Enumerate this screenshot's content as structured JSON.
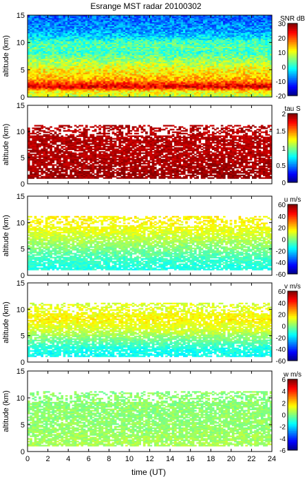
{
  "figure": {
    "title": "Esrange MST radar 20100302",
    "xlabel": "time (UT)"
  },
  "chart_data": [
    {
      "type": "heatmap",
      "ylabel": "altitude (km)",
      "quantity": "SNR",
      "unit_label": "SNR dB",
      "xlim": [
        0,
        24
      ],
      "ylim": [
        0,
        15
      ],
      "xticks": [
        0,
        2,
        4,
        6,
        8,
        10,
        12,
        14,
        16,
        18,
        20,
        22,
        24
      ],
      "yticks": [
        0,
        5,
        10,
        15
      ],
      "colorbar": {
        "range": [
          -20,
          30
        ],
        "ticks": [
          -20,
          -10,
          0,
          10,
          20,
          30
        ]
      },
      "profile_vs_altitude": [
        [
          0,
          8
        ],
        [
          1,
          12
        ],
        [
          1.8,
          26
        ],
        [
          2.3,
          22
        ],
        [
          3,
          16
        ],
        [
          4,
          13
        ],
        [
          5,
          11
        ],
        [
          6,
          8
        ],
        [
          7,
          5
        ],
        [
          8,
          2
        ],
        [
          9,
          3
        ],
        [
          10,
          2
        ],
        [
          11,
          -3
        ],
        [
          12,
          -6
        ],
        [
          13,
          -7
        ],
        [
          14,
          -8
        ],
        [
          15,
          -9
        ]
      ],
      "coverage_km": [
        0,
        15
      ]
    },
    {
      "type": "heatmap",
      "ylabel": "altitude (km)",
      "quantity": "tau",
      "unit_label": "tau S",
      "xlim": [
        0,
        24
      ],
      "ylim": [
        0,
        15
      ],
      "xticks": [
        0,
        2,
        4,
        6,
        8,
        10,
        12,
        14,
        16,
        18,
        20,
        22,
        24
      ],
      "yticks": [
        0,
        5,
        10,
        15
      ],
      "colorbar": {
        "range": [
          0,
          2
        ],
        "ticks": [
          0,
          0.5,
          1,
          1.5,
          2
        ]
      },
      "profile_vs_altitude": [
        [
          1,
          1.95
        ],
        [
          5,
          1.9
        ],
        [
          11,
          1.9
        ]
      ],
      "coverage_km": [
        1,
        11
      ]
    },
    {
      "type": "heatmap",
      "ylabel": "altitude (km)",
      "quantity": "u",
      "unit_label": "u m/s",
      "xlim": [
        0,
        24
      ],
      "ylim": [
        0,
        15
      ],
      "xticks": [
        0,
        2,
        4,
        6,
        8,
        10,
        12,
        14,
        16,
        18,
        20,
        22,
        24
      ],
      "yticks": [
        0,
        5,
        10,
        15
      ],
      "colorbar": {
        "range": [
          -60,
          60
        ],
        "ticks": [
          -60,
          -40,
          -20,
          0,
          20,
          40,
          60
        ]
      },
      "profile_vs_altitude": [
        [
          1,
          -12
        ],
        [
          3,
          -8
        ],
        [
          5,
          0
        ],
        [
          7,
          8
        ],
        [
          9,
          14
        ],
        [
          11,
          16
        ]
      ],
      "coverage_km": [
        1,
        11
      ]
    },
    {
      "type": "heatmap",
      "ylabel": "altitude (km)",
      "quantity": "v",
      "unit_label": "v m/s",
      "xlim": [
        0,
        24
      ],
      "ylim": [
        0,
        15
      ],
      "xticks": [
        0,
        2,
        4,
        6,
        8,
        10,
        12,
        14,
        16,
        18,
        20,
        22,
        24
      ],
      "yticks": [
        0,
        5,
        10,
        15
      ],
      "colorbar": {
        "range": [
          -60,
          60
        ],
        "ticks": [
          -60,
          -40,
          -20,
          0,
          20,
          40,
          60
        ]
      },
      "profile_vs_altitude": [
        [
          1,
          -14
        ],
        [
          2.5,
          -12
        ],
        [
          4,
          -2
        ],
        [
          6,
          10
        ],
        [
          8,
          16
        ],
        [
          10,
          12
        ],
        [
          11,
          10
        ]
      ],
      "coverage_km": [
        1,
        11
      ]
    },
    {
      "type": "heatmap",
      "ylabel": "altitude (km)",
      "quantity": "w",
      "unit_label": "w m/s",
      "xlim": [
        0,
        24
      ],
      "ylim": [
        0,
        15
      ],
      "xticks": [
        0,
        2,
        4,
        6,
        8,
        10,
        12,
        14,
        16,
        18,
        20,
        22,
        24
      ],
      "yticks": [
        0,
        5,
        10,
        15
      ],
      "colorbar": {
        "range": [
          -6,
          6
        ],
        "ticks": [
          -6,
          -4,
          -2,
          0,
          2,
          4,
          6
        ]
      },
      "profile_vs_altitude": [
        [
          1,
          0.5
        ],
        [
          5,
          0.2
        ],
        [
          11,
          0.1
        ]
      ],
      "coverage_km": [
        1,
        11
      ]
    }
  ]
}
